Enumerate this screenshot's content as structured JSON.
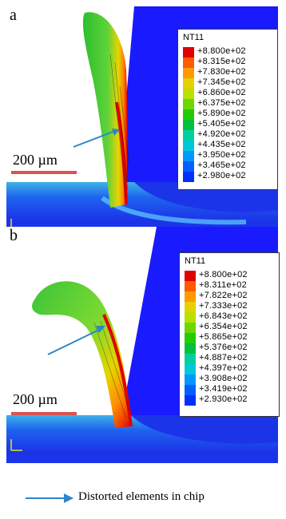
{
  "panels": [
    {
      "letter": "a",
      "legend_title": "NT11",
      "legend_values": [
        "+8.800e+02",
        "+8.315e+02",
        "+7.830e+02",
        "+7.345e+02",
        "+6.860e+02",
        "+6.375e+02",
        "+5.890e+02",
        "+5.405e+02",
        "+4.920e+02",
        "+4.435e+02",
        "+3.950e+02",
        "+3.465e+02",
        "+2.980e+02"
      ],
      "scale_bar": "200 µm"
    },
    {
      "letter": "b",
      "legend_title": "NT11",
      "legend_values": [
        "+8.800e+02",
        "+8.311e+02",
        "+7.822e+02",
        "+7.333e+02",
        "+6.843e+02",
        "+6.354e+02",
        "+5.865e+02",
        "+5.376e+02",
        "+4.887e+02",
        "+4.397e+02",
        "+3.908e+02",
        "+3.419e+02",
        "+2.930e+02"
      ],
      "scale_bar": "200 µm"
    }
  ],
  "legend_colors": [
    "#e00000",
    "#ff5a00",
    "#ff9a00",
    "#e8d000",
    "#b8e000",
    "#6cd800",
    "#22cc00",
    "#00c040",
    "#00d0a0",
    "#00c8d8",
    "#0098ff",
    "#0060ff",
    "#0030ff"
  ],
  "caption": "Distorted elements in chip",
  "colors": {
    "tool_blue": "#1a1aff",
    "workpiece_blue": "#1c34e8",
    "arrow": "#2e86c8",
    "scale_bar": "#d9534f"
  }
}
